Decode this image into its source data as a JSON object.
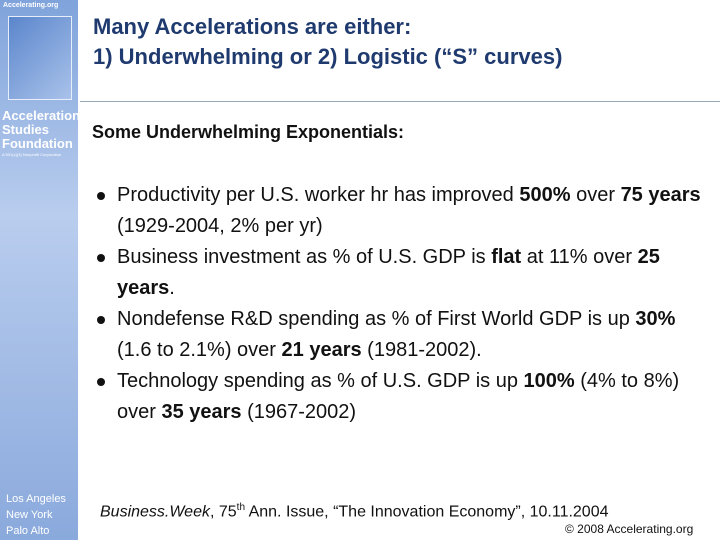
{
  "sidebar": {
    "logo_text": "Accelerating.org",
    "org_name": [
      "Acceleration",
      "Studies",
      "Foundation"
    ],
    "org_note": "A 501(c)(3) Nonprofit Corporation",
    "locations": [
      "Los Angeles",
      "New York",
      "Palo Alto"
    ]
  },
  "header": {
    "title_lines": [
      "Many Accelerations are either:",
      "1) Underwhelming or 2) Logistic (“S” curves)"
    ]
  },
  "subtitle": "Some Underwhelming Exponentials:",
  "bullets": [
    [
      {
        "text": "Productivity per U.S. worker hr has improved ",
        "style": "normal"
      },
      {
        "text": "500%",
        "style": "bold"
      },
      {
        "text": " over ",
        "style": "normal"
      },
      {
        "text": "75 years",
        "style": "bold"
      },
      {
        "text": " (1929-2004, 2% per yr)",
        "style": "normal"
      }
    ],
    [
      {
        "text": "Business investment as % of U.S. GDP is ",
        "style": "normal"
      },
      {
        "text": "flat",
        "style": "bold"
      },
      {
        "text": " at 11% over ",
        "style": "normal"
      },
      {
        "text": "25 years",
        "style": "bold"
      },
      {
        "text": ".",
        "style": "normal"
      }
    ],
    [
      {
        "text": "Nondefense R&D spending as % of First World GDP is up ",
        "style": "normal"
      },
      {
        "text": "30%",
        "style": "bold"
      },
      {
        "text": " (1.6 to 2.1%) over ",
        "style": "normal"
      },
      {
        "text": "21 years",
        "style": "bold"
      },
      {
        "text": " (1981-2002).",
        "style": "normal"
      }
    ],
    [
      {
        "text": "Technology spending as % of U.S. GDP is up ",
        "style": "normal"
      },
      {
        "text": "100%",
        "style": "bold"
      },
      {
        "text": " (4% to 8%) over ",
        "style": "normal"
      },
      {
        "text": "35 years",
        "style": "bold"
      },
      {
        "text": " (1967-2002)",
        "style": "normal"
      }
    ]
  ],
  "citation": [
    {
      "text": "Business.Week",
      "style": "italic"
    },
    {
      "text": ", 75",
      "style": "normal"
    },
    {
      "text": "th",
      "style": "superscript"
    },
    {
      "text": " Ann. Issue, “The Innovation Economy”, 10.11.2004",
      "style": "normal"
    }
  ],
  "footer": "© 2008 Accelerating.org"
}
